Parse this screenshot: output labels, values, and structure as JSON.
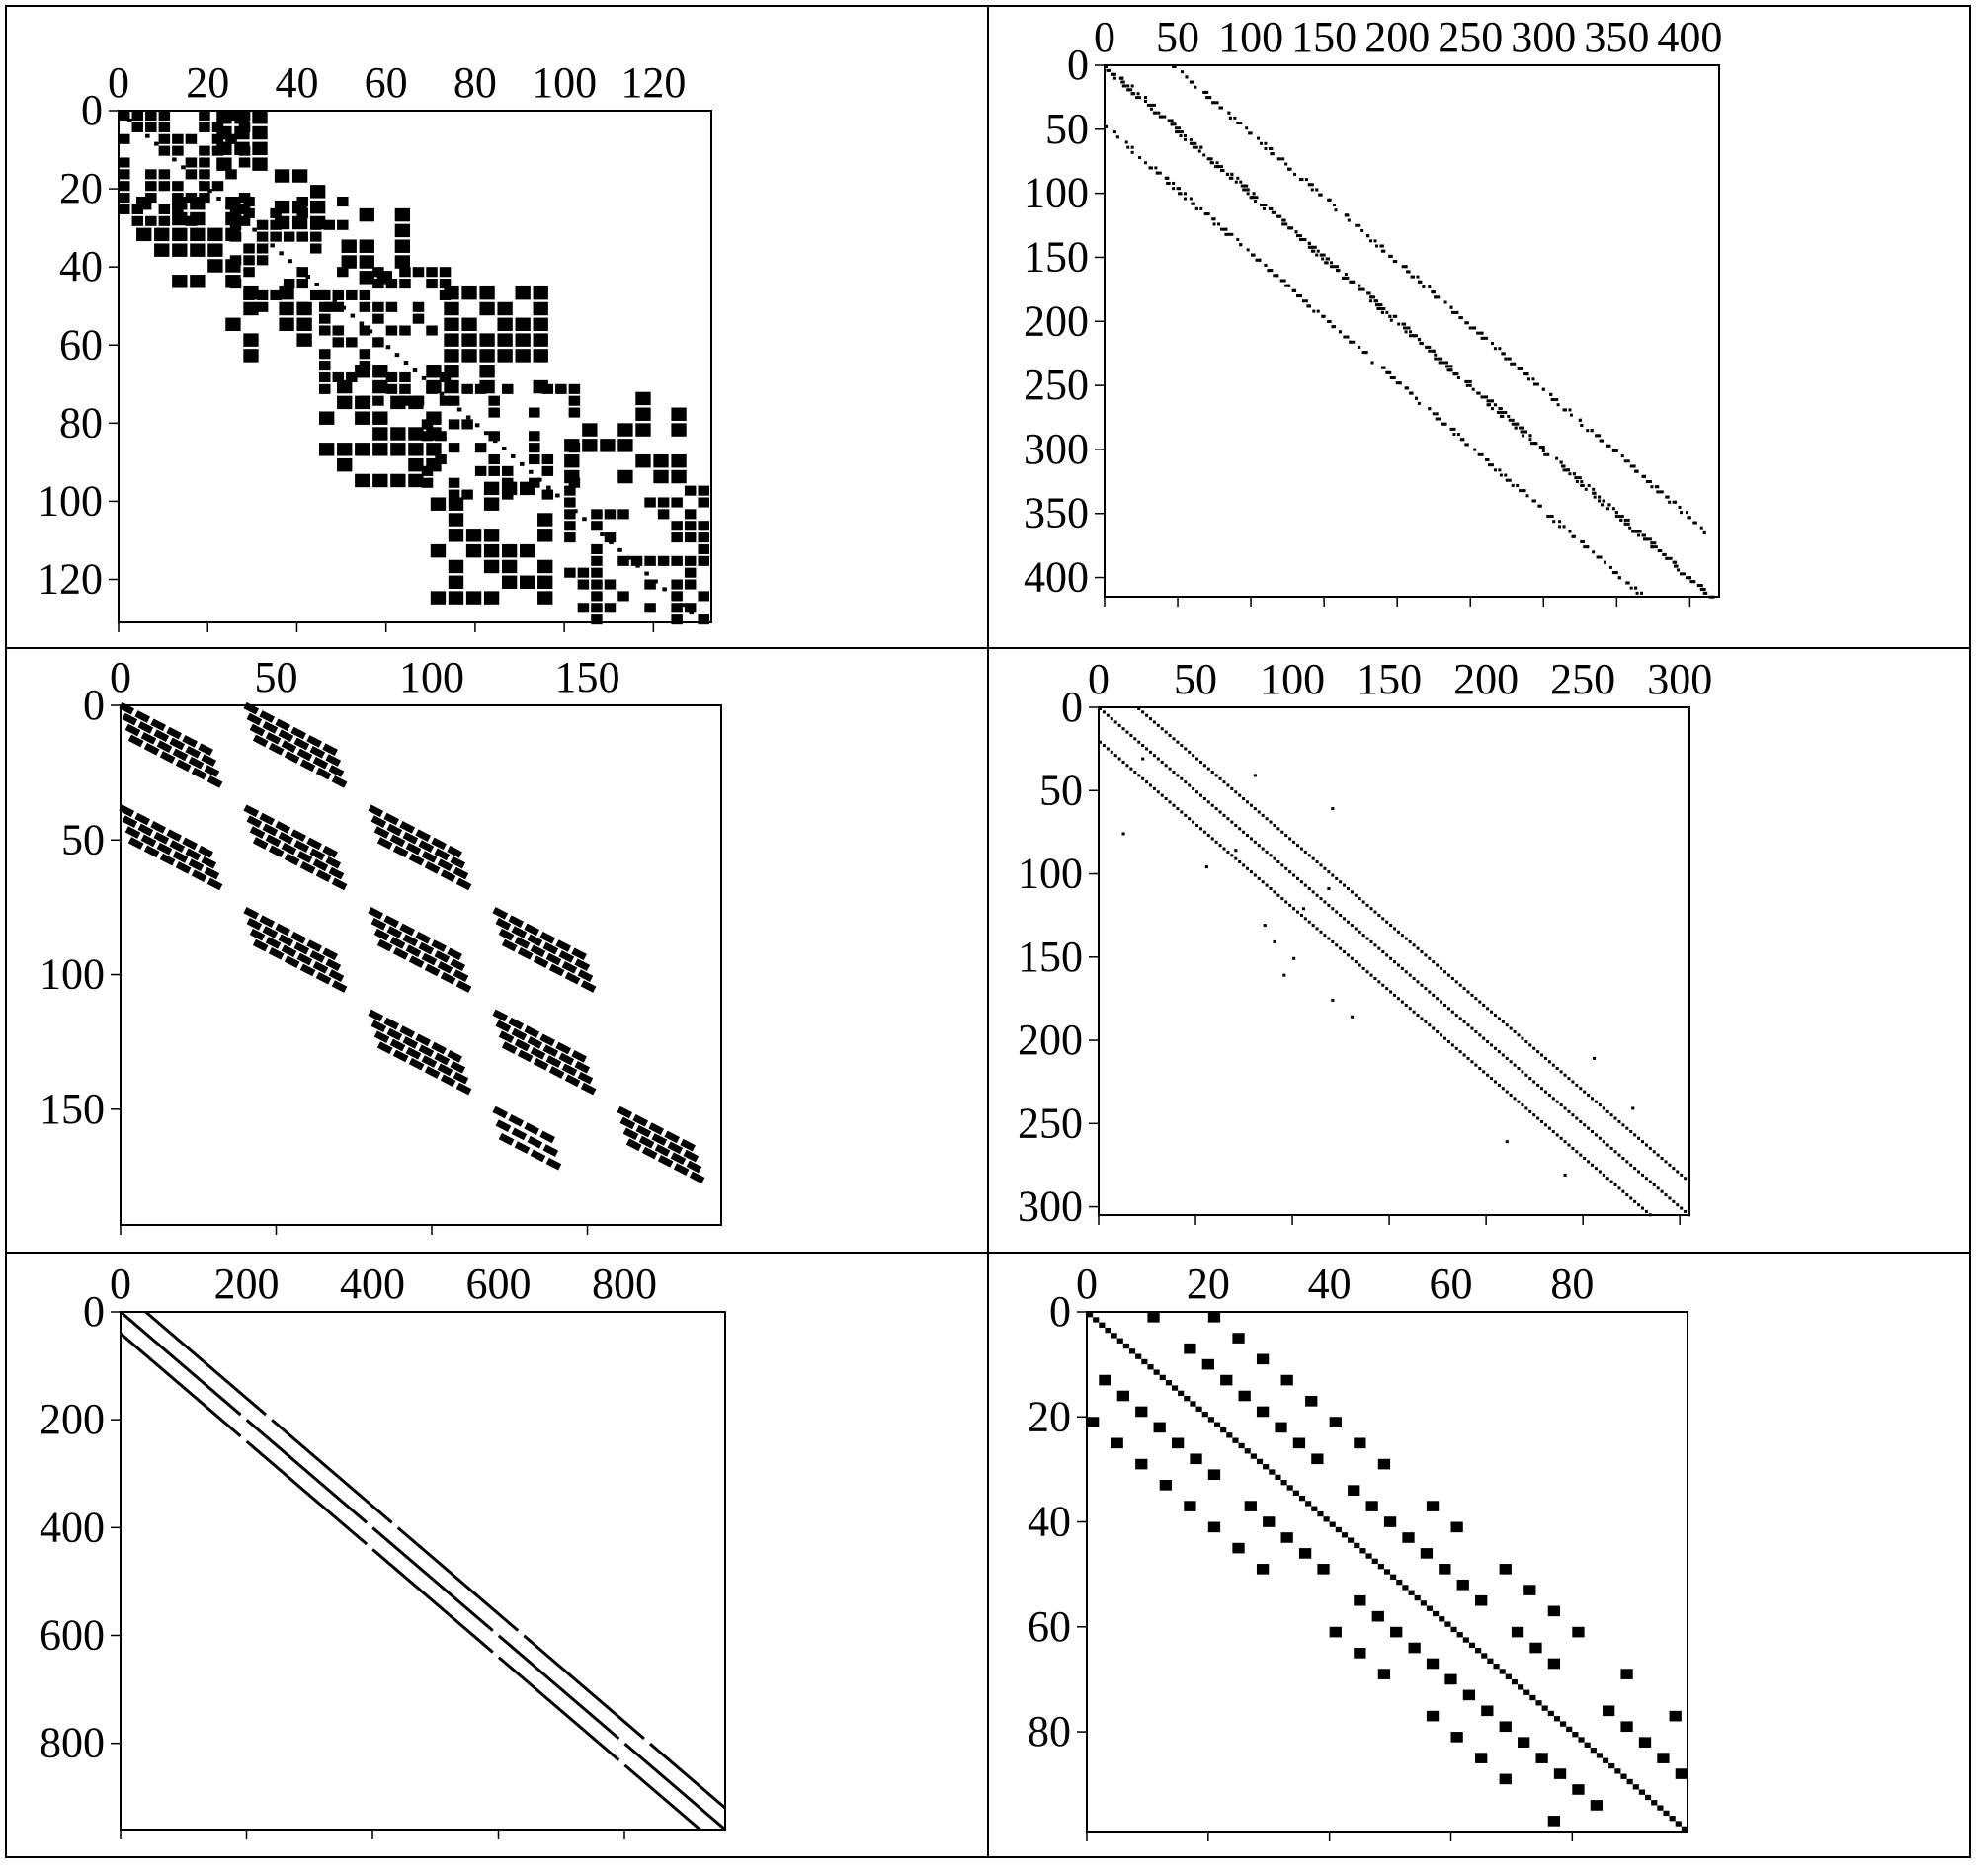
{
  "colors": {
    "background": "#ffffff",
    "marks": "#000000",
    "axes": "#000000"
  },
  "chart_data": [
    {
      "type": "scatter",
      "x_ticks": [
        0,
        20,
        40,
        60,
        80,
        100,
        120
      ],
      "y_ticks": [
        0,
        20,
        40,
        60,
        80,
        100,
        120
      ],
      "xlim": [
        0,
        133
      ],
      "ylim": [
        0,
        131
      ],
      "grid": false,
      "pattern": {
        "kind": "checker_blocks",
        "seed": 11,
        "stamps": [
          {
            "r0": 0,
            "r1": 29,
            "c0": 0,
            "c1": 29,
            "density": 0.5,
            "cell": 3
          },
          {
            "r0": 0,
            "r1": 14,
            "c0": 22,
            "c1": 33,
            "density": 0.7,
            "cell": 4
          },
          {
            "r0": 15,
            "r1": 29,
            "c0": 35,
            "c1": 47,
            "density": 0.7,
            "cell": 4
          },
          {
            "r0": 22,
            "r1": 45,
            "c0": 4,
            "c1": 25,
            "density": 0.6,
            "cell": 4
          },
          {
            "r0": 22,
            "r1": 50,
            "c0": 25,
            "c1": 50,
            "density": 0.45,
            "cell": 3
          },
          {
            "r0": 25,
            "r1": 45,
            "c0": 50,
            "c1": 64,
            "density": 0.6,
            "cell": 4
          },
          {
            "r0": 45,
            "r1": 65,
            "c0": 24,
            "c1": 43,
            "density": 0.6,
            "cell": 4
          },
          {
            "r0": 40,
            "r1": 75,
            "c0": 45,
            "c1": 75,
            "density": 0.45,
            "cell": 3
          },
          {
            "r0": 45,
            "r1": 70,
            "c0": 73,
            "c1": 95,
            "density": 0.6,
            "cell": 4
          },
          {
            "r0": 65,
            "r1": 95,
            "c0": 45,
            "c1": 70,
            "density": 0.6,
            "cell": 4
          },
          {
            "r0": 70,
            "r1": 100,
            "c0": 68,
            "c1": 102,
            "density": 0.4,
            "cell": 3
          },
          {
            "r0": 72,
            "r1": 95,
            "c0": 100,
            "c1": 125,
            "density": 0.6,
            "cell": 4
          },
          {
            "r0": 95,
            "r1": 125,
            "c0": 70,
            "c1": 95,
            "density": 0.6,
            "cell": 4
          },
          {
            "r0": 96,
            "r1": 131,
            "c0": 100,
            "c1": 133,
            "density": 0.45,
            "cell": 3
          }
        ]
      }
    },
    {
      "type": "scatter",
      "x_ticks": [
        0,
        50,
        100,
        150,
        200,
        250,
        300,
        350,
        400
      ],
      "y_ticks": [
        0,
        50,
        100,
        150,
        200,
        250,
        300,
        350,
        400
      ],
      "xlim": [
        0,
        420
      ],
      "ylim": [
        0,
        415
      ],
      "grid": false,
      "pattern": {
        "kind": "diagonal_bands",
        "seed": 23,
        "bands": [
          {
            "offset": 0,
            "from": 0,
            "to": 415,
            "step": 3,
            "width": 4
          },
          {
            "offset": 47,
            "from": 0,
            "to": 368,
            "step": 4,
            "width": 3
          },
          {
            "offset": -47,
            "from": 47,
            "to": 415,
            "step": 4,
            "width": 3
          }
        ]
      }
    },
    {
      "type": "scatter",
      "x_ticks": [
        0,
        50,
        100,
        150
      ],
      "y_ticks": [
        0,
        50,
        100,
        150
      ],
      "xlim": [
        0,
        193
      ],
      "ylim": [
        0,
        193
      ],
      "grid": false,
      "pattern": {
        "kind": "dash_groups",
        "groups": [
          {
            "r": 0,
            "c": 0,
            "len": 30,
            "count": 4,
            "gap": 4
          },
          {
            "r": 0,
            "c": 40,
            "len": 30,
            "count": 4,
            "gap": 4
          },
          {
            "r": 38,
            "c": 0,
            "len": 30,
            "count": 4,
            "gap": 4
          },
          {
            "r": 38,
            "c": 40,
            "len": 30,
            "count": 4,
            "gap": 4
          },
          {
            "r": 38,
            "c": 80,
            "len": 30,
            "count": 4,
            "gap": 4
          },
          {
            "r": 76,
            "c": 40,
            "len": 30,
            "count": 4,
            "gap": 4
          },
          {
            "r": 76,
            "c": 80,
            "len": 30,
            "count": 4,
            "gap": 4
          },
          {
            "r": 76,
            "c": 120,
            "len": 30,
            "count": 4,
            "gap": 4
          },
          {
            "r": 114,
            "c": 80,
            "len": 30,
            "count": 4,
            "gap": 4
          },
          {
            "r": 114,
            "c": 120,
            "len": 30,
            "count": 4,
            "gap": 4
          },
          {
            "r": 150,
            "c": 120,
            "len": 20,
            "count": 3,
            "gap": 5
          },
          {
            "r": 150,
            "c": 160,
            "len": 25,
            "count": 4,
            "gap": 4
          }
        ]
      }
    },
    {
      "type": "scatter",
      "x_ticks": [
        0,
        50,
        100,
        150,
        200,
        250,
        300
      ],
      "y_ticks": [
        0,
        50,
        100,
        150,
        200,
        250,
        300
      ],
      "xlim": [
        0,
        305
      ],
      "ylim": [
        0,
        305
      ],
      "grid": false,
      "pattern": {
        "kind": "diagonal_lines",
        "seed": 37,
        "lines": [
          {
            "offset": 0,
            "from": 0,
            "to": 305,
            "step": 2
          },
          {
            "offset": 20,
            "from": 0,
            "to": 285,
            "step": 2
          },
          {
            "offset": -20,
            "from": 20,
            "to": 305,
            "step": 2
          }
        ],
        "extras": [
          [
            30,
            22
          ],
          [
            75,
            12
          ],
          [
            95,
            55
          ],
          [
            85,
            70
          ],
          [
            120,
            105
          ],
          [
            130,
            85
          ],
          [
            140,
            90
          ],
          [
            150,
            100
          ],
          [
            160,
            95
          ],
          [
            175,
            120
          ],
          [
            185,
            130
          ],
          [
            210,
            255
          ],
          [
            240,
            275
          ],
          [
            260,
            210
          ],
          [
            280,
            240
          ],
          [
            40,
            80
          ],
          [
            60,
            120
          ],
          [
            108,
            118
          ]
        ]
      }
    },
    {
      "type": "line",
      "x_ticks": [
        0,
        200,
        400,
        600,
        800
      ],
      "y_ticks": [
        0,
        200,
        400,
        600,
        800
      ],
      "xlim": [
        0,
        960
      ],
      "ylim": [
        0,
        960
      ],
      "grid": false,
      "pattern": {
        "kind": "offset_lines",
        "lines": [
          {
            "offset": 0
          },
          {
            "offset": 40
          },
          {
            "offset": -40
          }
        ]
      }
    },
    {
      "type": "scatter",
      "x_ticks": [
        0,
        20,
        40,
        60,
        80
      ],
      "y_ticks": [
        0,
        20,
        40,
        60,
        80
      ],
      "xlim": [
        0,
        99
      ],
      "ylim": [
        0,
        99
      ],
      "grid": false,
      "pattern": {
        "kind": "block_bands",
        "seed": 51,
        "diagonal": true,
        "bands": [
          {
            "offset": 10,
            "size": 2,
            "stride": 3
          },
          {
            "offset": -10,
            "size": 2,
            "stride": 3
          },
          {
            "offset": 20,
            "size": 2,
            "stride": 4
          },
          {
            "offset": -20,
            "size": 2,
            "stride": 4
          }
        ]
      }
    }
  ]
}
